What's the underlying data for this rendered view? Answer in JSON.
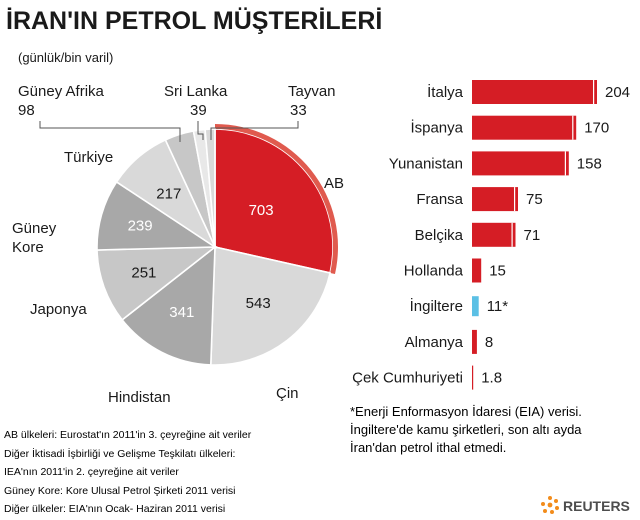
{
  "title": "İRAN'IN PETROL MÜŞTERİLERİ",
  "subtitle": "(günlük/bin varil)",
  "colors": {
    "eu_red": "#d51d25",
    "eu_outer": "#e05a4e",
    "pie_dark": "#a8a8a8",
    "pie_mid": "#c7c7c7",
    "pie_light": "#d9d9d9",
    "pie_pale": "#e8e8e8",
    "uk_blue": "#5bc0e5",
    "reuters_orange": "#f28c1b"
  },
  "chart_data": [
    {
      "type": "pie",
      "slices": [
        {
          "label": "AB",
          "value": 703
        },
        {
          "label": "Çin",
          "value": 543
        },
        {
          "label": "Hindistan",
          "value": 341
        },
        {
          "label": "Japonya",
          "value": 251
        },
        {
          "label": "Güney Kore",
          "value": 239
        },
        {
          "label": "Türkiye",
          "value": 217
        },
        {
          "label": "Güney Afrika",
          "value": 98
        },
        {
          "label": "Sri Lanka",
          "value": 39
        },
        {
          "label": "Tayvan",
          "value": 33
        }
      ]
    },
    {
      "type": "bar",
      "orientation": "horizontal",
      "categories": [
        "İtalya",
        "İspanya",
        "Yunanistan",
        "Fransa",
        "Belçika",
        "Hollanda",
        "İngiltere",
        "Almanya",
        "Çek Cumhuriyeti"
      ],
      "values": [
        204,
        170,
        158,
        75,
        71,
        15,
        11,
        8,
        1.8
      ],
      "value_labels": [
        "204",
        "170",
        "158",
        "75",
        "71",
        "15",
        "11*",
        "8",
        "1.8"
      ]
    }
  ],
  "footnote_right": [
    "*Enerji Enformasyon İdaresi (EIA) verisi.",
    "İngiltere'de kamu şirketleri, son altı ayda",
    "İran'dan petrol ithal etmedi."
  ],
  "sources": [
    "AB ülkeleri:  Eurostat'ın 2011'in 3. çeyreğine ait veriler",
    "Diğer İktisadi İşbirliği ve Gelişme Teşkilatı ülkeleri:",
    "IEA'nın 2011'in 2. çeyreğine ait veriler",
    "Güney Kore:  Kore Ulusal Petrol Şirketi 2011 verisi",
    "Diğer ülkeler: EIA'nın Ocak- Haziran 2011 verisi"
  ],
  "logo_text": "REUTERS"
}
